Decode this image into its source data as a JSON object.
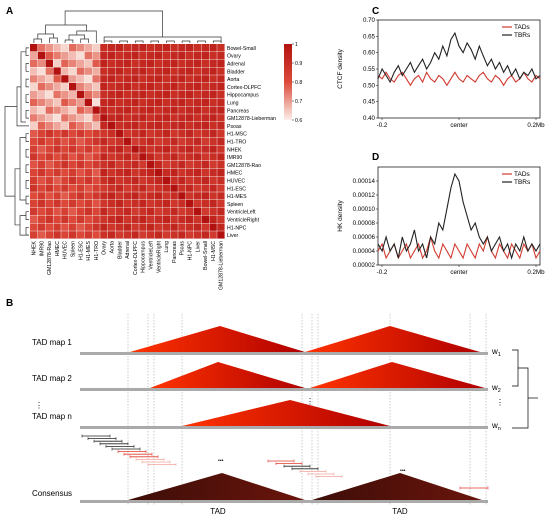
{
  "panels": {
    "a": "A",
    "b": "B",
    "c": "C",
    "d": "D"
  },
  "heatmap": {
    "rows": [
      "Bowel-Small",
      "Ovary",
      "Adrenal",
      "Bladder",
      "Aorta",
      "Cortex-DLPFC",
      "Hippocampus",
      "Lung",
      "Pancreas",
      "GM12878-Lieberman",
      "Psoas",
      "H1-MSC",
      "H1-TRO",
      "NHEK",
      "IMR90",
      "GM12878-Rao",
      "HMEC",
      "HUVEC",
      "H1-ESC",
      "H1-MES",
      "Spleen",
      "VentricleLeft",
      "VentricleRight",
      "H1-NPC",
      "Liver"
    ],
    "cols": [
      "NHEK",
      "IMR90",
      "GM12878-Rao",
      "HMEC",
      "HUVEC",
      "Spleen",
      "H1-ESC",
      "H1-MES",
      "H1-TRO",
      "Ovary",
      "Aorta",
      "Bladder",
      "Adrenal",
      "Cortex-DLPFC",
      "Hippocampus",
      "VentricleLeft",
      "VentricleRight",
      "Lung",
      "Pancreas",
      "Psoas",
      "H1-NPC",
      "Liver",
      "Bowel-Small",
      "H1-MSC",
      "GM12878-Lieberman"
    ],
    "colorbar_ticks": [
      "1",
      "0.9",
      "0.8",
      "0.7",
      "0.6"
    ],
    "colors": {
      "high": "#b2120f",
      "mid": "#dd4a3a",
      "low": "#fbefe8"
    }
  },
  "chart_data": [
    {
      "type": "line",
      "panel": "C",
      "ylabel": "CTCF density",
      "xticks": [
        "-0.2",
        "center",
        "0.2Mb"
      ],
      "yticks": [
        "0.40",
        "0.45",
        "0.50",
        "0.55",
        "0.60",
        "0.65",
        "0.70"
      ],
      "ylim": [
        0.4,
        0.7
      ],
      "legend_position": "top-right",
      "series": [
        {
          "name": "TADs",
          "color": "#d13a2f",
          "values": [
            0.53,
            0.52,
            0.54,
            0.52,
            0.51,
            0.53,
            0.54,
            0.52,
            0.5,
            0.52,
            0.53,
            0.51,
            0.54,
            0.52,
            0.51,
            0.53,
            0.52,
            0.5,
            0.52,
            0.54,
            0.52,
            0.51,
            0.53,
            0.52,
            0.51,
            0.53,
            0.54,
            0.52,
            0.51,
            0.53,
            0.52,
            0.5,
            0.52,
            0.53,
            0.51,
            0.52,
            0.54,
            0.52,
            0.51,
            0.53,
            0.52
          ]
        },
        {
          "name": "TBRs",
          "color": "#222222",
          "values": [
            0.52,
            0.55,
            0.53,
            0.51,
            0.54,
            0.56,
            0.53,
            0.55,
            0.57,
            0.54,
            0.56,
            0.58,
            0.55,
            0.57,
            0.6,
            0.58,
            0.62,
            0.59,
            0.64,
            0.66,
            0.62,
            0.6,
            0.63,
            0.61,
            0.58,
            0.62,
            0.59,
            0.56,
            0.58,
            0.55,
            0.57,
            0.54,
            0.56,
            0.53,
            0.55,
            0.52,
            0.54,
            0.53,
            0.55,
            0.52,
            0.53
          ]
        }
      ]
    },
    {
      "type": "line",
      "panel": "D",
      "ylabel": "HK density",
      "xticks": [
        "-0.2",
        "center",
        "0.2Mb"
      ],
      "yticks": [
        "0.00002",
        "0.00004",
        "0.00006",
        "0.00008",
        "0.00010",
        "0.00012",
        "0.00014"
      ],
      "ylim": [
        2e-05,
        0.00016
      ],
      "legend_position": "top-right",
      "series": [
        {
          "name": "TADs",
          "color": "#d13a2f",
          "values": [
            4e-05,
            5e-05,
            3e-05,
            4e-05,
            5e-05,
            3e-05,
            4e-05,
            5e-05,
            3e-05,
            4e-05,
            5e-05,
            3e-05,
            4e-05,
            6e-05,
            4e-05,
            3e-05,
            5e-05,
            4e-05,
            3e-05,
            5e-05,
            4e-05,
            3e-05,
            5e-05,
            4e-05,
            3e-05,
            5e-05,
            4e-05,
            6e-05,
            4e-05,
            3e-05,
            5e-05,
            4e-05,
            3e-05,
            5e-05,
            4e-05,
            3e-05,
            5e-05,
            4e-05,
            5e-05,
            3e-05,
            4e-05
          ]
        },
        {
          "name": "TBRs",
          "color": "#222222",
          "values": [
            5e-05,
            4e-05,
            6e-05,
            4e-05,
            5e-05,
            3e-05,
            6e-05,
            4e-05,
            5e-05,
            7e-05,
            4e-05,
            5e-05,
            3e-05,
            6e-05,
            5e-05,
            8e-05,
            7e-05,
            0.0001,
            0.00013,
            0.00015,
            0.00014,
            0.00011,
            9e-05,
            7e-05,
            8e-05,
            6e-05,
            5e-05,
            6e-05,
            4e-05,
            5e-05,
            6e-05,
            4e-05,
            5e-05,
            3e-05,
            5e-05,
            4e-05,
            6e-05,
            4e-05,
            5e-05,
            4e-05,
            5e-05
          ]
        }
      ]
    }
  ],
  "schematic": {
    "maps": [
      "TAD map 1",
      "TAD map 2",
      "TAD map n"
    ],
    "weights": [
      "w1",
      "w2",
      "wn"
    ],
    "weight_base": [
      "w",
      "w",
      "w"
    ],
    "weight_sub": [
      "1",
      "2",
      "n"
    ],
    "consensus": "Consensus",
    "tad_labels": [
      "TAD",
      "TAD"
    ],
    "vdots": "⋮",
    "ellipsis": "•••",
    "colors": {
      "red": "#ee1100",
      "dark": "#4a0f0a",
      "gray": "#aaaaaa",
      "seg_black": "#222222",
      "seg_red": "#e23a2c",
      "seg_pink": "#f2a49a"
    }
  }
}
